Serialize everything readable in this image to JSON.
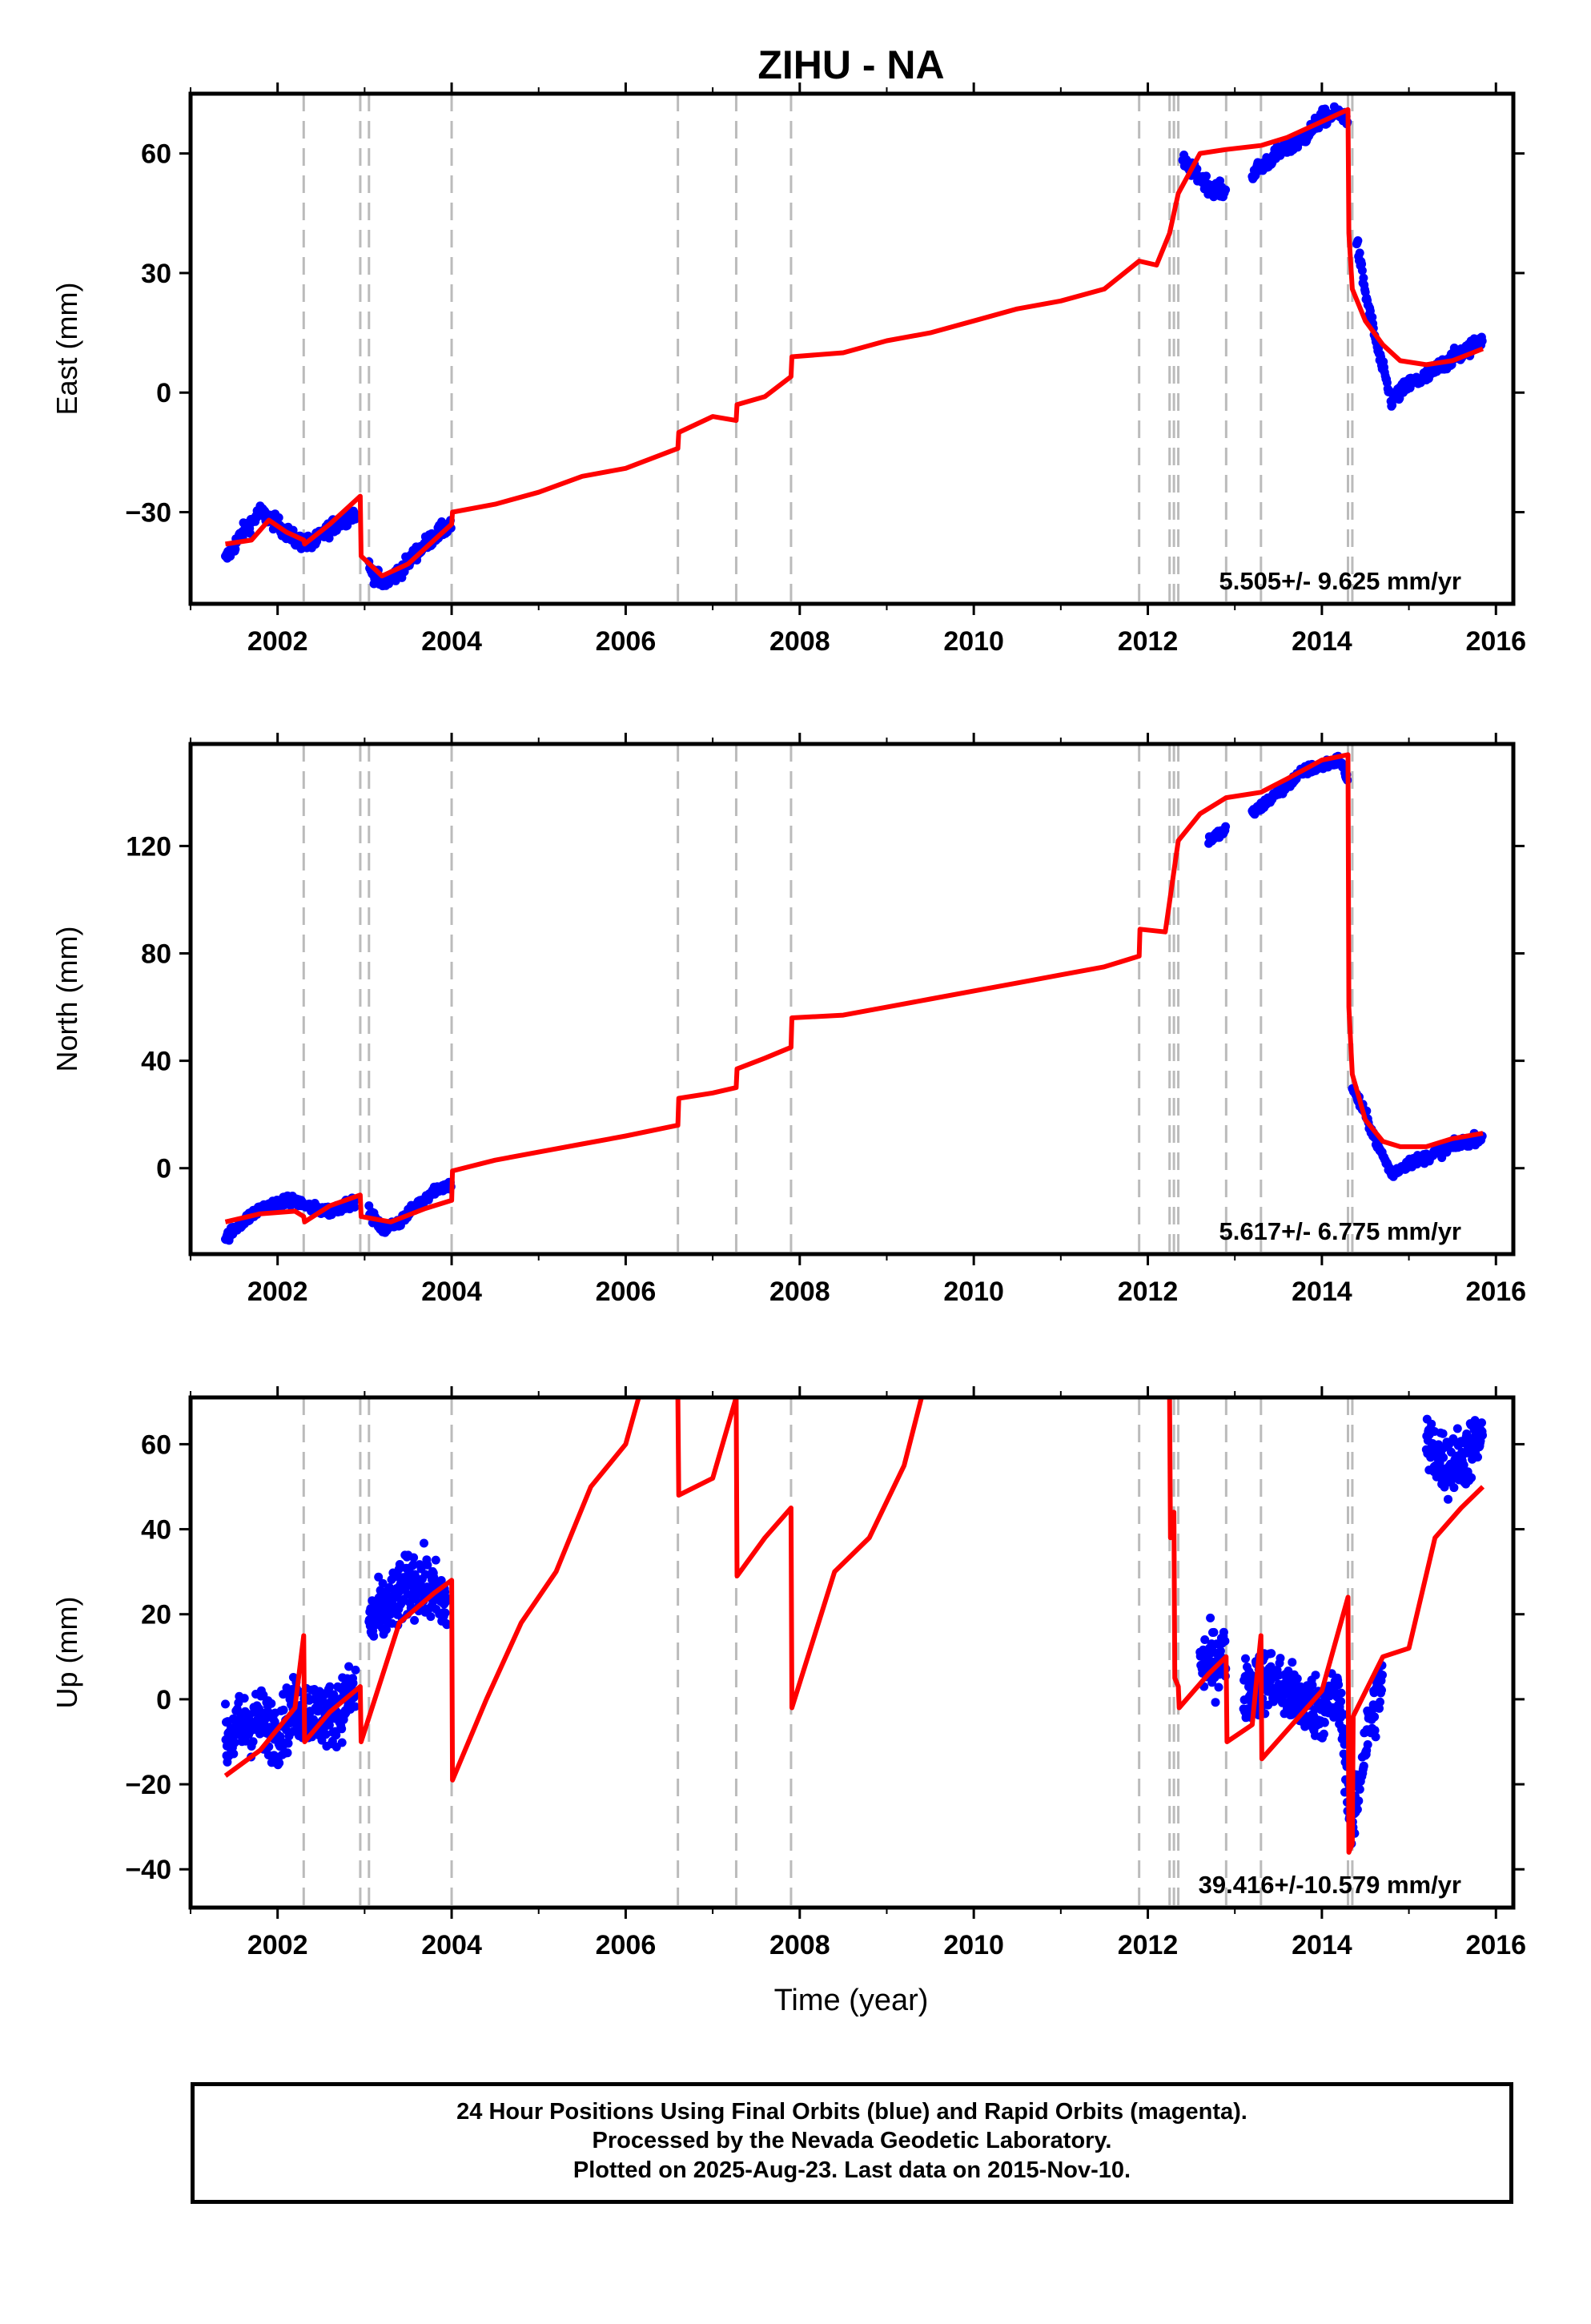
{
  "title": "ZIHU - NA",
  "xlabel": "Time (year)",
  "caption": {
    "line1": "24 Hour Positions Using Final Orbits (blue) and Rapid Orbits (magenta).",
    "line2": "Processed by the Nevada Geodetic Laboratory.",
    "line3": "Plotted on 2025-Aug-23. Last data on 2015-Nov-10."
  },
  "colors": {
    "data": "#0000ff",
    "model": "#ff0000",
    "event": "#bbbbbb",
    "axis": "#000000"
  },
  "chart_data": [
    {
      "type": "scatter",
      "component": "east",
      "ylabel": "East (mm)",
      "xlim": [
        2001.0,
        2016.2
      ],
      "ylim": [
        -53,
        75
      ],
      "xticks": [
        2002,
        2004,
        2006,
        2008,
        2010,
        2012,
        2014,
        2016
      ],
      "yticks": [
        -30,
        0,
        30,
        60
      ],
      "rate_label": "5.505+/- 9.625 mm/yr",
      "event_lines": [
        2002.3,
        2002.95,
        2003.05,
        2004.0,
        2006.6,
        2007.27,
        2007.9,
        2011.9,
        2012.25,
        2012.3,
        2012.35,
        2012.9,
        2013.3,
        2014.3,
        2014.35
      ],
      "model": {
        "x": [
          2001.4,
          2001.7,
          2001.9,
          2002.1,
          2002.3,
          2002.31,
          2002.6,
          2002.95,
          2002.96,
          2003.2,
          2003.5,
          2003.8,
          2004.0,
          2004.01,
          2004.5,
          2005.0,
          2005.5,
          2006.0,
          2006.6,
          2006.61,
          2007.0,
          2007.27,
          2007.28,
          2007.6,
          2007.9,
          2007.91,
          2008.5,
          2009.0,
          2009.5,
          2010.0,
          2010.5,
          2011.0,
          2011.5,
          2011.9,
          2012.1,
          2012.25,
          2012.35,
          2012.6,
          2012.9,
          2013.3,
          2013.6,
          2014.0,
          2014.3,
          2014.31,
          2014.35,
          2014.5,
          2014.7,
          2014.9,
          2015.2,
          2015.5,
          2015.85
        ],
        "y": [
          -38,
          -37,
          -32,
          -35,
          -37,
          -38,
          -33,
          -26,
          -41,
          -46,
          -43,
          -37,
          -33,
          -30,
          -28,
          -25,
          -21,
          -19,
          -14,
          -10,
          -6,
          -7,
          -3,
          -1,
          4,
          9,
          10,
          13,
          15,
          18,
          21,
          23,
          26,
          33,
          32,
          40,
          50,
          60,
          61,
          62,
          64,
          68,
          71,
          40,
          26,
          18,
          12,
          8,
          7,
          8,
          11
        ]
      },
      "data_segments": [
        {
          "x": [
            2001.4,
            2001.6,
            2001.8,
            2002.0,
            2002.2,
            2002.4,
            2002.6,
            2002.9
          ],
          "y": [
            -42,
            -35,
            -30,
            -33,
            -37,
            -38,
            -34,
            -30
          ]
        },
        {
          "x": [
            2003.05,
            2003.2,
            2003.4,
            2003.6,
            2003.8,
            2004.0
          ],
          "y": [
            -44,
            -48,
            -45,
            -40,
            -36,
            -33
          ]
        },
        {
          "x": [
            2012.4,
            2012.7,
            2012.9
          ],
          "y": [
            58,
            52,
            50
          ]
        },
        {
          "x": [
            2013.2,
            2013.5,
            2013.8,
            2014.0,
            2014.2,
            2014.3
          ],
          "y": [
            55,
            60,
            64,
            69,
            70,
            69
          ]
        },
        {
          "x": [
            2014.4,
            2014.5,
            2014.65,
            2014.8,
            2015.0,
            2015.2,
            2015.45,
            2015.7,
            2015.85
          ],
          "y": [
            38,
            25,
            10,
            -2,
            2,
            4,
            8,
            11,
            14
          ]
        }
      ]
    },
    {
      "type": "scatter",
      "component": "north",
      "ylabel": "North (mm)",
      "xlim": [
        2001.0,
        2016.2
      ],
      "ylim": [
        -32,
        158
      ],
      "xticks": [
        2002,
        2004,
        2006,
        2008,
        2010,
        2012,
        2014,
        2016
      ],
      "yticks": [
        0,
        40,
        80,
        120
      ],
      "rate_label": "5.617+/- 6.775 mm/yr",
      "event_lines": [
        2002.3,
        2002.95,
        2003.05,
        2004.0,
        2006.6,
        2007.27,
        2007.9,
        2011.9,
        2012.25,
        2012.3,
        2012.35,
        2012.9,
        2013.3,
        2014.3,
        2014.35
      ],
      "model": {
        "x": [
          2001.4,
          2001.8,
          2002.2,
          2002.3,
          2002.31,
          2002.6,
          2002.95,
          2002.96,
          2003.3,
          2003.7,
          2004.0,
          2004.01,
          2004.5,
          2005.0,
          2005.5,
          2006.0,
          2006.6,
          2006.61,
          2007.0,
          2007.27,
          2007.28,
          2007.6,
          2007.9,
          2007.91,
          2008.5,
          2009.0,
          2009.5,
          2010.0,
          2010.5,
          2011.0,
          2011.5,
          2011.9,
          2011.91,
          2012.2,
          2012.35,
          2012.6,
          2012.9,
          2013.3,
          2013.6,
          2014.0,
          2014.3,
          2014.31,
          2014.35,
          2014.5,
          2014.7,
          2014.9,
          2015.2,
          2015.5,
          2015.85
        ],
        "y": [
          -20,
          -17,
          -16,
          -18,
          -20,
          -14,
          -10,
          -18,
          -20,
          -15,
          -12,
          -1,
          3,
          6,
          9,
          12,
          16,
          26,
          28,
          30,
          37,
          41,
          45,
          56,
          57,
          60,
          63,
          66,
          69,
          72,
          75,
          79,
          89,
          88,
          122,
          132,
          138,
          140,
          145,
          152,
          154,
          60,
          35,
          18,
          10,
          8,
          8,
          11,
          13
        ]
      },
      "data_segments": [
        {
          "x": [
            2001.4,
            2001.6,
            2001.8,
            2002.0,
            2002.2,
            2002.4,
            2002.6,
            2002.9
          ],
          "y": [
            -26,
            -20,
            -15,
            -13,
            -12,
            -15,
            -16,
            -12
          ]
        },
        {
          "x": [
            2003.05,
            2003.2,
            2003.4,
            2003.6,
            2003.8,
            2004.0
          ],
          "y": [
            -16,
            -23,
            -20,
            -14,
            -8,
            -6
          ]
        },
        {
          "x": [
            2012.7,
            2012.9
          ],
          "y": [
            122,
            126
          ]
        },
        {
          "x": [
            2013.2,
            2013.5,
            2013.8,
            2014.0,
            2014.2,
            2014.3
          ],
          "y": [
            132,
            140,
            148,
            150,
            152,
            145
          ]
        },
        {
          "x": [
            2014.35,
            2014.5,
            2014.65,
            2014.8,
            2015.0,
            2015.2,
            2015.5,
            2015.85
          ],
          "y": [
            30,
            20,
            8,
            -2,
            2,
            4,
            8,
            12
          ]
        }
      ]
    },
    {
      "type": "scatter",
      "component": "up",
      "ylabel": "Up (mm)",
      "xlim": [
        2001.0,
        2016.2
      ],
      "ylim": [
        -49,
        71
      ],
      "xticks": [
        2002,
        2004,
        2006,
        2008,
        2010,
        2012,
        2014,
        2016
      ],
      "yticks": [
        -40,
        -20,
        0,
        20,
        40,
        60
      ],
      "rate_label": "39.416+/-10.579 mm/yr",
      "event_lines": [
        2002.3,
        2002.95,
        2003.05,
        2004.0,
        2006.6,
        2007.27,
        2007.9,
        2011.9,
        2012.25,
        2012.3,
        2012.35,
        2012.9,
        2013.3,
        2014.3,
        2014.35
      ],
      "model": {
        "x": [
          2001.4,
          2001.8,
          2002.2,
          2002.3,
          2002.31,
          2002.6,
          2002.95,
          2002.96,
          2003.4,
          2003.8,
          2004.0,
          2004.01,
          2004.4,
          2004.8,
          2005.2,
          2005.6,
          2006.0,
          2006.15
        ],
        "y": [
          -18,
          -12,
          -2,
          15,
          -10,
          -3,
          3,
          -10,
          18,
          25,
          28,
          -19,
          0,
          18,
          30,
          50,
          60,
          71
        ]
      },
      "model2": {
        "x": [
          2006.6,
          2006.61,
          2007.0,
          2007.27,
          2007.28,
          2007.6,
          2007.9,
          2007.91,
          2008.4,
          2008.8,
          2009.2,
          2009.4
        ],
        "y": [
          71,
          48,
          52,
          71,
          29,
          38,
          45,
          -2,
          30,
          38,
          55,
          71
        ]
      },
      "model3": {
        "x": [
          2012.25,
          2012.26,
          2012.3,
          2012.31,
          2012.35,
          2012.36,
          2012.7,
          2012.9,
          2012.91,
          2013.2,
          2013.3,
          2013.31,
          2013.7,
          2014.0,
          2014.3,
          2014.31,
          2014.35,
          2014.36,
          2014.7,
          2015.0,
          2015.3,
          2015.6,
          2015.85
        ],
        "y": [
          71,
          38,
          44,
          5,
          3,
          -2,
          6,
          10,
          -10,
          -6,
          15,
          -14,
          -5,
          2,
          24,
          -36,
          -34,
          -4,
          10,
          12,
          38,
          45,
          50
        ]
      },
      "data_segments": [
        {
          "x": [
            2001.4,
            2001.6,
            2001.8,
            2002.0,
            2002.2,
            2002.4,
            2002.6,
            2002.9
          ],
          "y": [
            -10,
            -6,
            -5,
            -8,
            -2,
            -3,
            -4,
            2
          ]
        },
        {
          "x": [
            2003.05,
            2003.3,
            2003.55,
            2003.8,
            2003.95
          ],
          "y": [
            18,
            22,
            28,
            25,
            22
          ]
        },
        {
          "x": [
            2012.6,
            2012.9
          ],
          "y": [
            8,
            10
          ]
        },
        {
          "x": [
            2013.1,
            2013.4,
            2013.7,
            2014.0,
            2014.2,
            2014.35,
            2014.5,
            2014.7
          ],
          "y": [
            2,
            5,
            0,
            -2,
            0,
            -30,
            -10,
            5
          ]
        },
        {
          "x": [
            2015.2,
            2015.45,
            2015.7,
            2015.85
          ],
          "y": [
            60,
            55,
            58,
            62
          ]
        }
      ]
    }
  ]
}
